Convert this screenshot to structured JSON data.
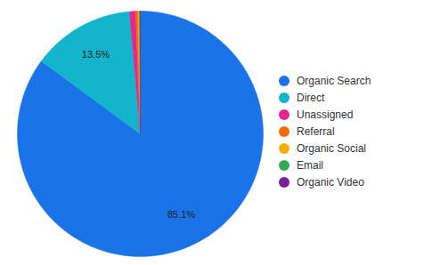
{
  "chart_data": {
    "type": "pie",
    "categories": [
      "Organic Search",
      "Direct",
      "Unassigned",
      "Referral",
      "Organic Social",
      "Email",
      "Organic Video"
    ],
    "values": [
      85.1,
      13.5,
      0.8,
      0.3,
      0.2,
      0.05,
      0.05
    ],
    "value_labels": [
      "85.1%",
      "13.5%",
      null,
      null,
      null,
      null,
      null
    ],
    "data_labels": true,
    "colors": [
      "#1a73e8",
      "#12b5cb",
      "#e52592",
      "#f46b00",
      "#f9ab00",
      "#34a853",
      "#7b1fa2"
    ],
    "legend": "right"
  }
}
